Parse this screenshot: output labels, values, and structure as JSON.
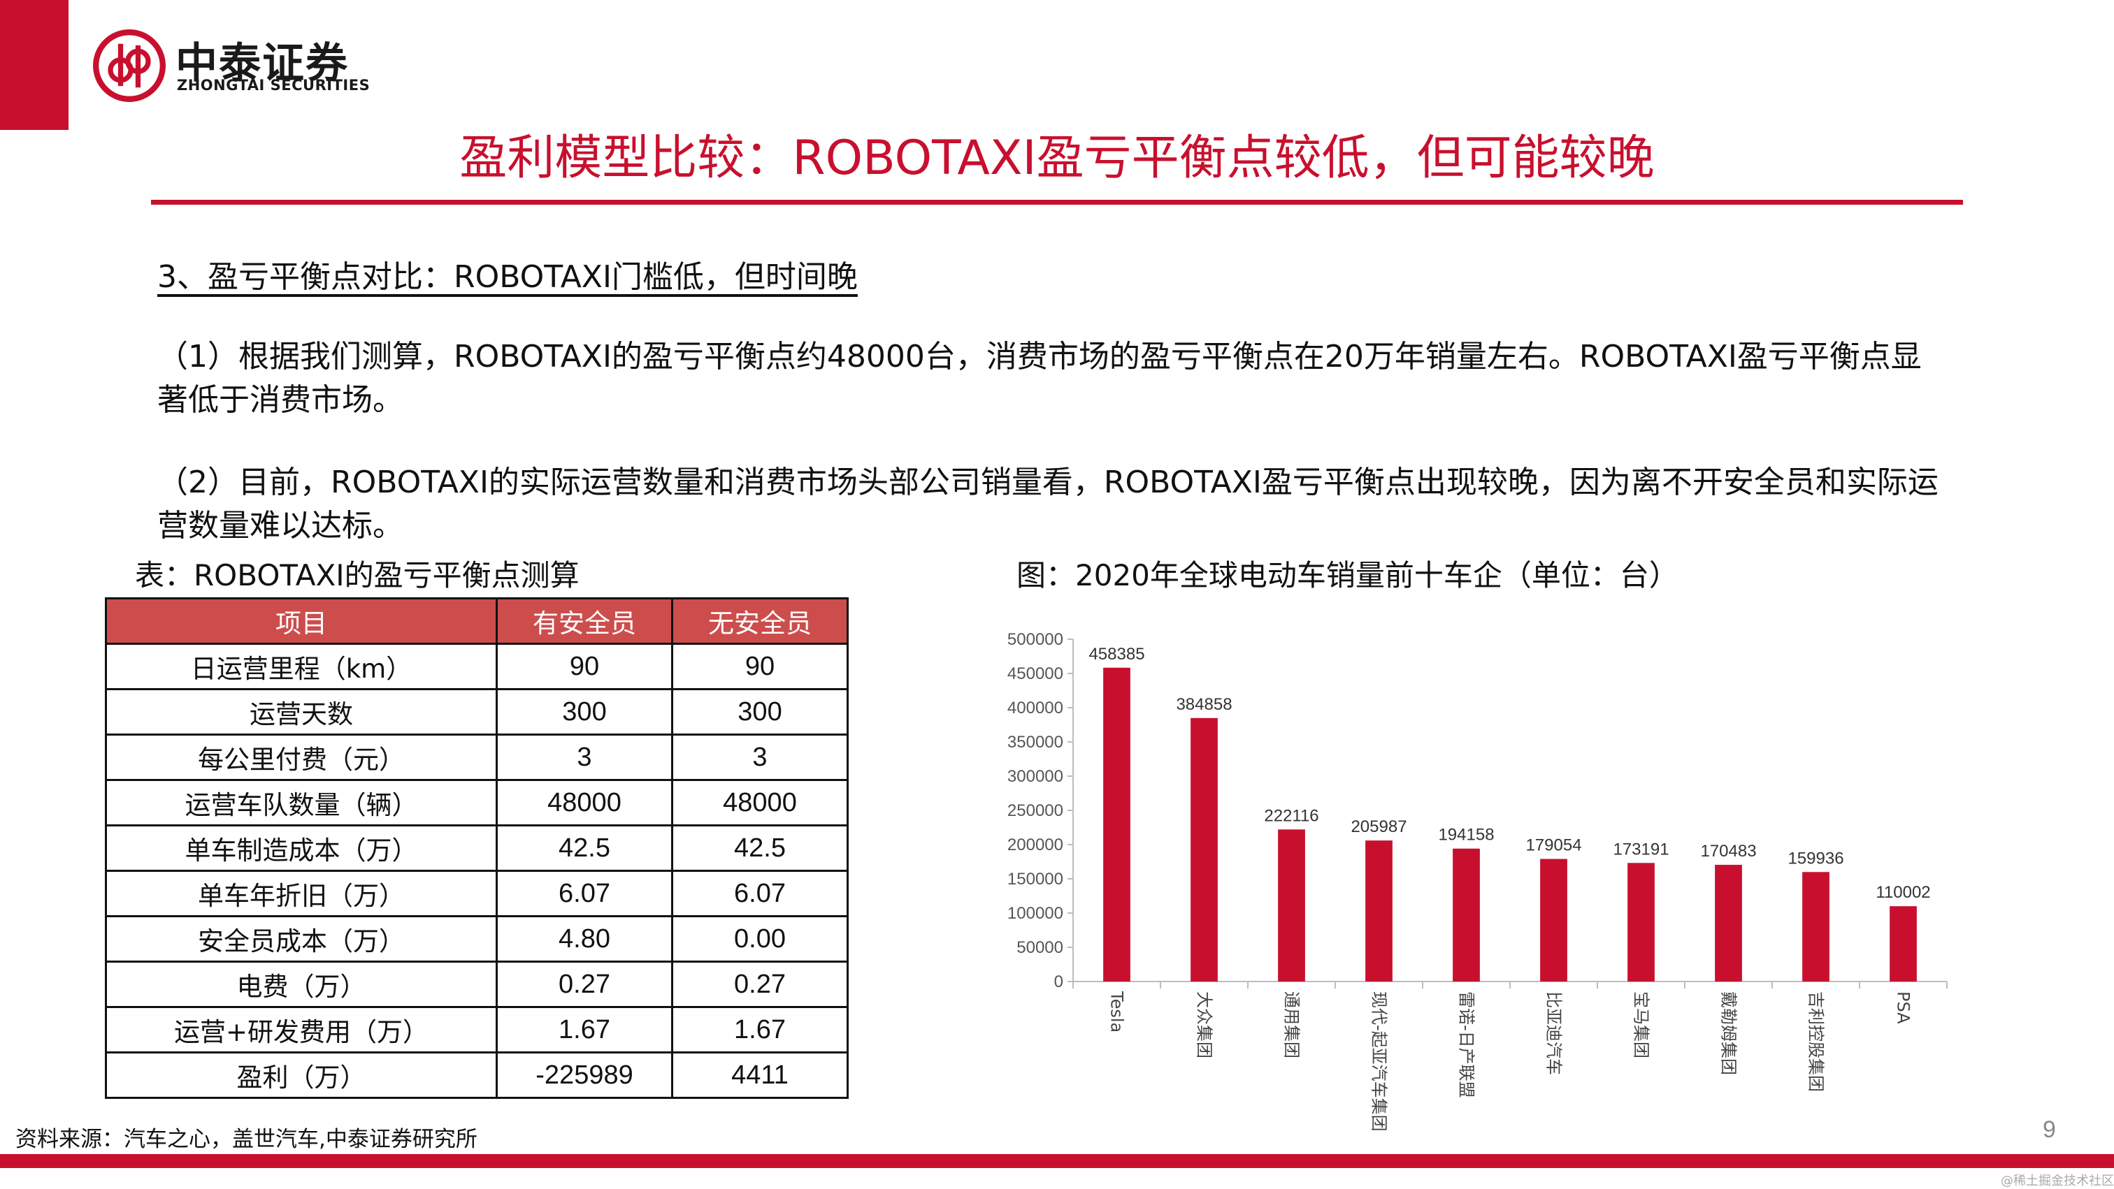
{
  "brand": {
    "name_cn": "中泰证券",
    "name_en": "ZHONGTAI SECURITIES",
    "color": "#c8102e"
  },
  "title": "盈利模型比较：ROBOTAXI盈亏平衡点较低，但可能较晚",
  "section_heading": "3、盈亏平衡点对比：ROBOTAXI门槛低，但时间晚",
  "paragraphs": [
    "（1）根据我们测算，ROBOTAXI的盈亏平衡点约48000台，消费市场的盈亏平衡点在20万年销量左右。ROBOTAXI盈亏平衡点显著低于消费市场。",
    "（2）目前，ROBOTAXI的实际运营数量和消费市场头部公司销量看，ROBOTAXI盈亏平衡点出现较晚，因为离不开安全员和实际运营数量难以达标。"
  ],
  "table": {
    "caption": "表：ROBOTAXI的盈亏平衡点测算",
    "headers": [
      "项目",
      "有安全员",
      "无安全员"
    ],
    "rows": [
      [
        "日运营里程（km）",
        "90",
        "90"
      ],
      [
        "运营天数",
        "300",
        "300"
      ],
      [
        "每公里付费（元）",
        "3",
        "3"
      ],
      [
        "运营车队数量（辆）",
        "48000",
        "48000"
      ],
      [
        "单车制造成本（万）",
        "42.5",
        "42.5"
      ],
      [
        "单车年折旧（万）",
        "6.07",
        "6.07"
      ],
      [
        "安全员成本（万）",
        "4.80",
        "0.00"
      ],
      [
        "电费（万）",
        "0.27",
        "0.27"
      ],
      [
        "运营+研发费用（万）",
        "1.67",
        "1.67"
      ],
      [
        "盈利（万）",
        "-225989",
        "4411"
      ]
    ]
  },
  "chart_caption": "图：2020年全球电动车销量前十车企（单位：台）",
  "chart_data": {
    "type": "bar",
    "title": "",
    "xlabel": "",
    "ylabel": "",
    "categories": [
      "Tesla",
      "大众集团",
      "通用集团",
      "现代-起亚汽车集团",
      "雷诺-日产联盟",
      "比亚迪汽车",
      "宝马集团",
      "戴勒姆集团",
      "吉利控股集团",
      "PSA"
    ],
    "values": [
      458385,
      384858,
      222116,
      205987,
      194158,
      179054,
      173191,
      170483,
      159936,
      110002
    ],
    "ylim": [
      0,
      500000
    ],
    "yticks": [
      0,
      50000,
      100000,
      150000,
      200000,
      250000,
      300000,
      350000,
      400000,
      450000,
      500000
    ],
    "bar_color": "#c8102e",
    "grid": false,
    "data_labels": true
  },
  "source": "资料来源：汽车之心，盖世汽车,中泰证券研究所",
  "page_number": "9",
  "watermark": "@稀土掘金技术社区"
}
